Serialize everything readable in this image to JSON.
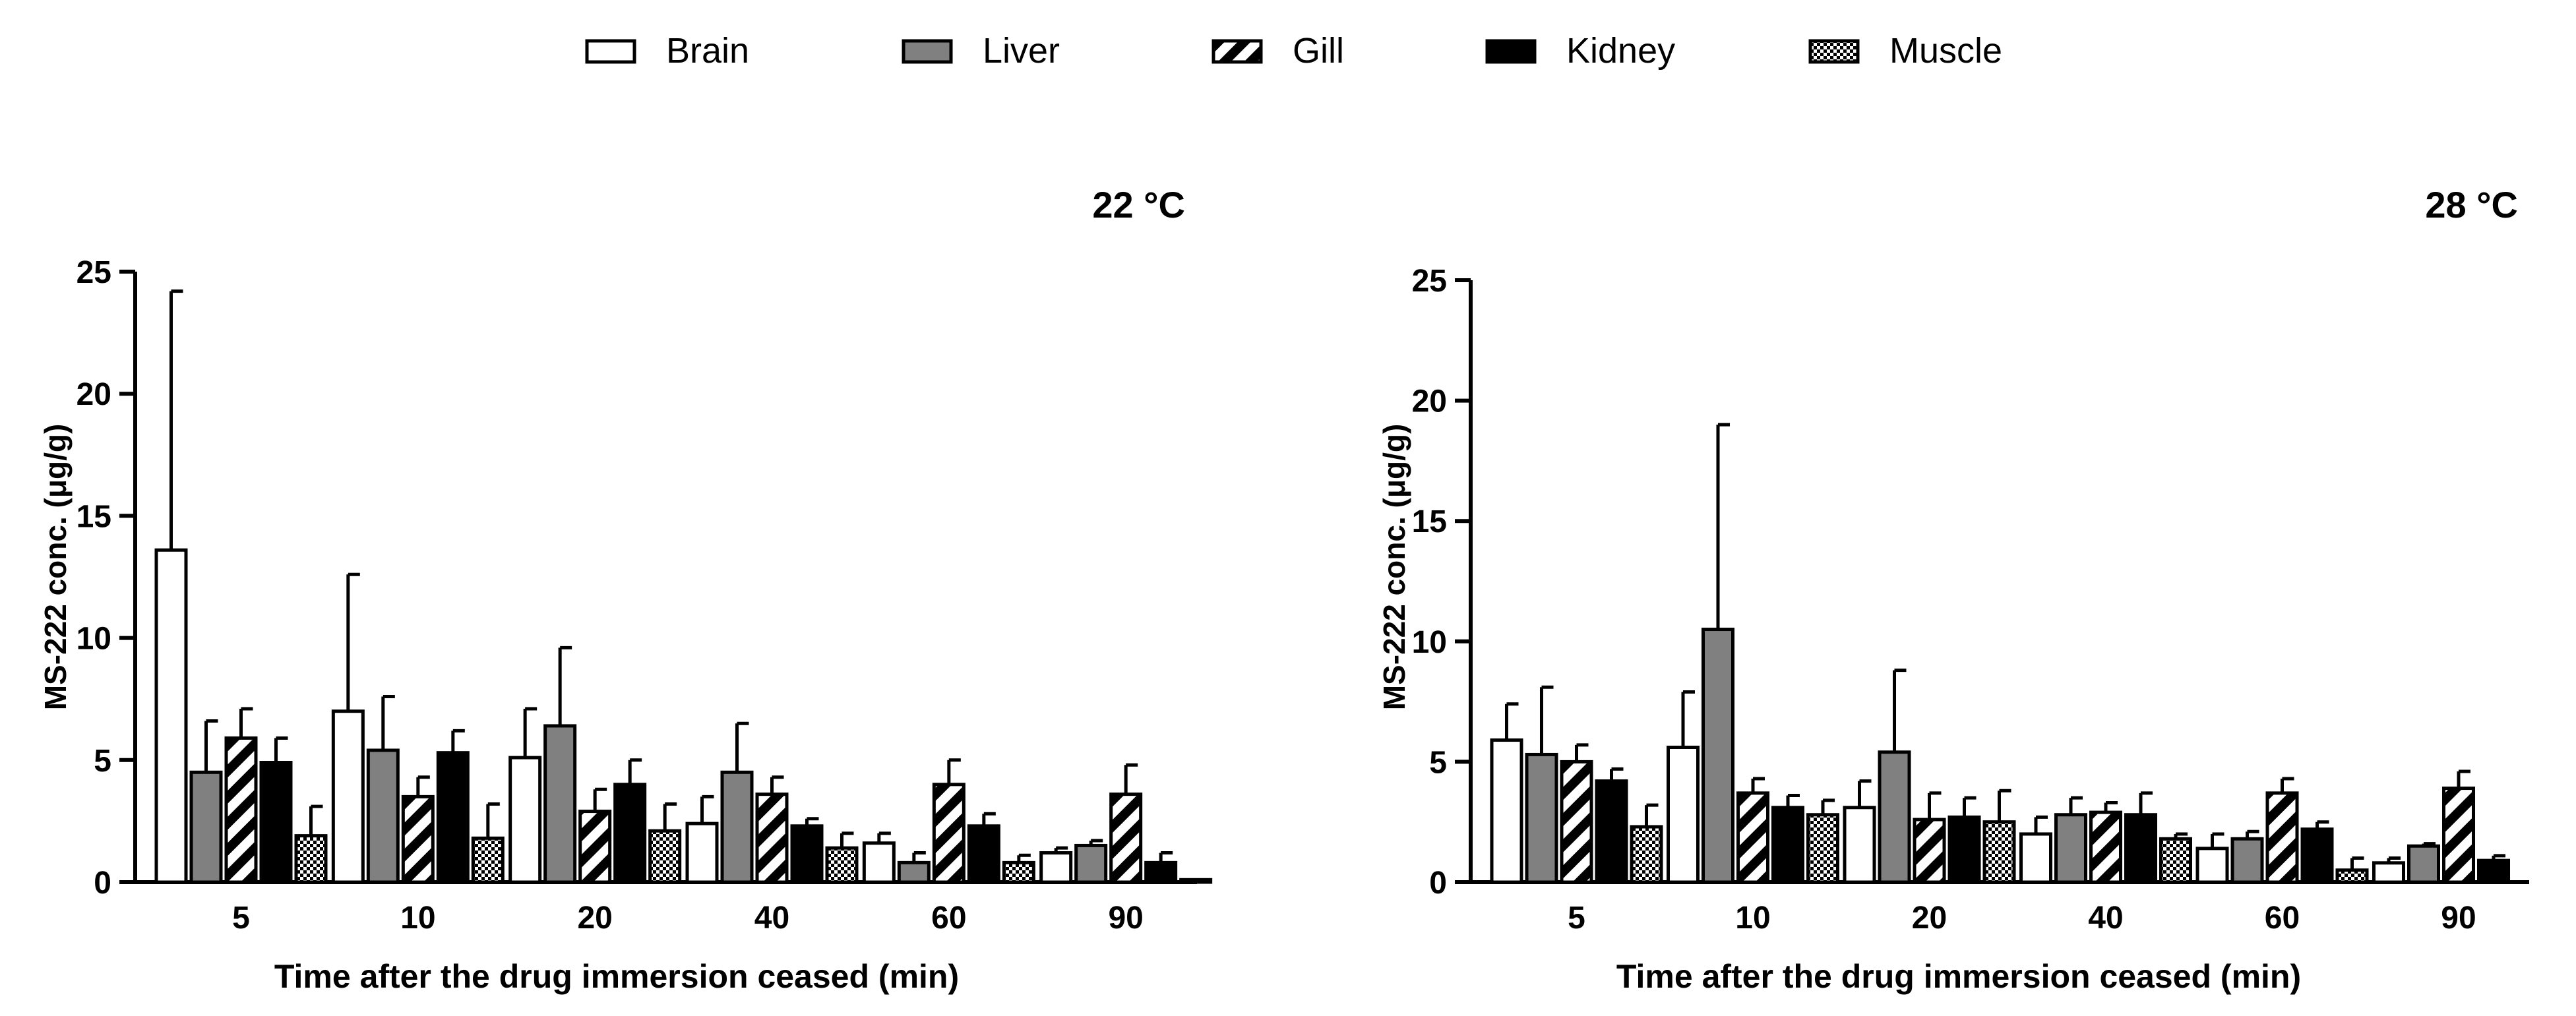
{
  "legend": [
    {
      "key": "brain",
      "label": "Brain",
      "fill": "white"
    },
    {
      "key": "liver",
      "label": "Liver",
      "fill": "gray"
    },
    {
      "key": "gill",
      "label": "Gill",
      "fill": "diagonal-stripes"
    },
    {
      "key": "kidney",
      "label": "Kidney",
      "fill": "black"
    },
    {
      "key": "muscle",
      "label": "Muscle",
      "fill": "checkered"
    }
  ],
  "colors": {
    "gray": "#808080",
    "black": "#000000",
    "white": "#ffffff"
  },
  "chart_data": [
    {
      "type": "bar",
      "title": "22 °C",
      "xlabel": "Time after the drug immersion ceased (min)",
      "ylabel": "MS-222 conc. (μg/g)",
      "ylim": [
        0,
        25
      ],
      "yticks": [
        0,
        5,
        10,
        15,
        20,
        25
      ],
      "categories": [
        "5",
        "10",
        "20",
        "40",
        "60",
        "90"
      ],
      "series": [
        {
          "name": "Brain",
          "values": [
            13.6,
            7.0,
            5.1,
            2.4,
            1.6,
            1.2
          ],
          "errors": [
            10.6,
            5.6,
            2.0,
            1.1,
            0.4,
            0.2
          ]
        },
        {
          "name": "Liver",
          "values": [
            4.5,
            5.4,
            6.4,
            4.5,
            0.8,
            1.5
          ],
          "errors": [
            2.1,
            2.2,
            3.2,
            2.0,
            0.4,
            0.2
          ]
        },
        {
          "name": "Gill",
          "values": [
            5.9,
            3.5,
            2.9,
            3.6,
            4.0,
            3.6
          ],
          "errors": [
            1.2,
            0.8,
            0.9,
            0.7,
            1.0,
            1.2
          ]
        },
        {
          "name": "Kidney",
          "values": [
            4.9,
            5.3,
            4.0,
            2.3,
            2.3,
            0.8
          ],
          "errors": [
            1.0,
            0.9,
            1.0,
            0.3,
            0.5,
            0.4
          ]
        },
        {
          "name": "Muscle",
          "values": [
            1.9,
            1.8,
            2.1,
            1.4,
            0.8,
            0.1
          ],
          "errors": [
            1.2,
            1.4,
            1.1,
            0.6,
            0.3,
            0.0
          ]
        }
      ]
    },
    {
      "type": "bar",
      "title": "28 °C",
      "xlabel": "Time after the drug immersion ceased (min)",
      "ylabel": "MS-222 conc. (μg/g)",
      "ylim": [
        0,
        25
      ],
      "yticks": [
        0,
        5,
        10,
        15,
        20,
        25
      ],
      "categories": [
        "5",
        "10",
        "20",
        "40",
        "60",
        "90"
      ],
      "series": [
        {
          "name": "Brain",
          "values": [
            5.9,
            5.6,
            3.1,
            2.0,
            1.4,
            0.8
          ],
          "errors": [
            1.5,
            2.3,
            1.1,
            0.7,
            0.6,
            0.2
          ]
        },
        {
          "name": "Liver",
          "values": [
            5.3,
            10.5,
            5.4,
            2.8,
            1.8,
            1.5
          ],
          "errors": [
            2.8,
            8.5,
            3.4,
            0.7,
            0.3,
            0.1
          ]
        },
        {
          "name": "Gill",
          "values": [
            5.0,
            3.7,
            2.6,
            2.9,
            3.7,
            3.9
          ],
          "errors": [
            0.7,
            0.6,
            1.1,
            0.4,
            0.6,
            0.7
          ]
        },
        {
          "name": "Kidney",
          "values": [
            4.2,
            3.1,
            2.7,
            2.8,
            2.2,
            0.9
          ],
          "errors": [
            0.5,
            0.5,
            0.8,
            0.9,
            0.3,
            0.2
          ]
        },
        {
          "name": "Muscle",
          "values": [
            2.3,
            2.8,
            2.5,
            1.8,
            0.5,
            0.0
          ],
          "errors": [
            0.9,
            0.6,
            1.3,
            0.2,
            0.5,
            0.0
          ]
        }
      ]
    }
  ]
}
